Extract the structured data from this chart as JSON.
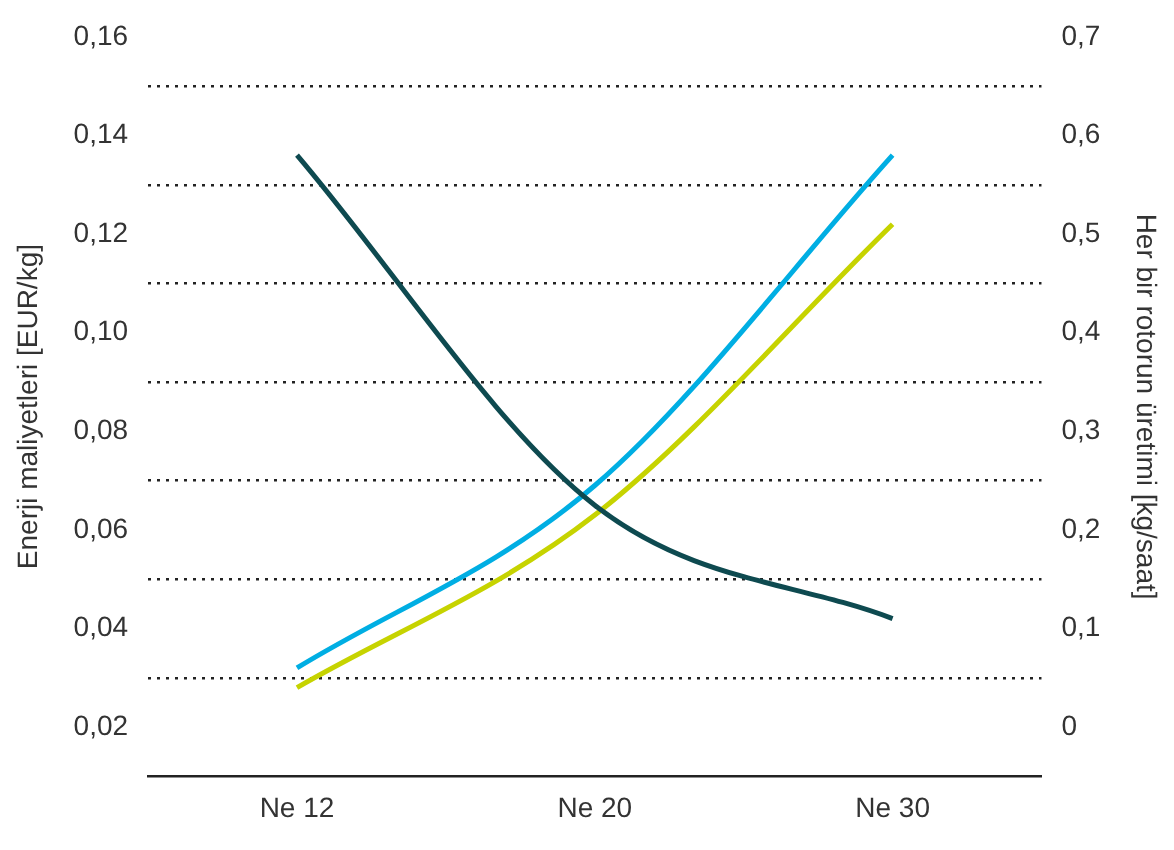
{
  "chart_data": {
    "type": "line",
    "ylabel": "Enerji maliyetleri [EUR/kg]",
    "y2label": "Her bir rotorun üretimi [kg/saat]",
    "categories": [
      "Ne 12",
      "Ne 20",
      "Ne 30"
    ],
    "series": [
      {
        "color": "#0e4a50",
        "values": [
          0.136,
          0.065,
          0.042
        ]
      },
      {
        "color": "#00aee3",
        "axis": "y2",
        "values": [
          0.06,
          0.245,
          0.58
        ]
      },
      {
        "color": "#c6d300",
        "axis": "y2",
        "values": [
          0.04,
          0.215,
          0.51
        ]
      }
    ],
    "ylim": [
      0.01,
      0.16
    ],
    "yticks": [
      {
        "value": 0.02,
        "label": "0,02"
      },
      {
        "value": 0.03,
        "label": null
      },
      {
        "value": 0.04,
        "label": "0,04"
      },
      {
        "value": 0.05,
        "label": null
      },
      {
        "value": 0.06,
        "label": "0,06"
      },
      {
        "value": 0.07,
        "label": null
      },
      {
        "value": 0.08,
        "label": "0,08"
      },
      {
        "value": 0.09,
        "label": null
      },
      {
        "value": 0.1,
        "label": "0,10"
      },
      {
        "value": 0.11,
        "label": null
      },
      {
        "value": 0.12,
        "label": "0,12"
      },
      {
        "value": 0.13,
        "label": null
      },
      {
        "value": 0.14,
        "label": "0,14"
      },
      {
        "value": 0.15,
        "label": null
      },
      {
        "value": 0.16,
        "label": "0,16"
      }
    ],
    "y2lim": [
      -0.05,
      0.7
    ],
    "y2ticks": [
      0,
      {
        "value": 0.1,
        "label": "0,1"
      },
      {
        "value": 0.2,
        "label": "0,2"
      },
      {
        "value": 0.3,
        "label": "0,3"
      },
      {
        "value": 0.4,
        "label": "0,4"
      },
      {
        "value": 0.5,
        "label": "0,5"
      },
      {
        "value": 0.6,
        "label": "0,6"
      },
      {
        "value": 0.7,
        "label": "0,7"
      }
    ],
    "grid": "y",
    "marker": "none",
    "line_style": "solid"
  }
}
